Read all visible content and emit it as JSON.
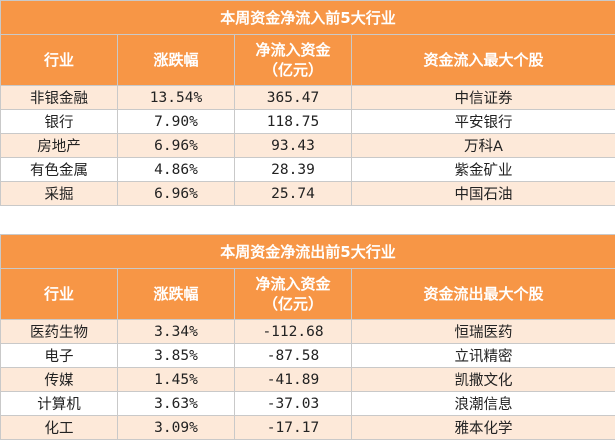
{
  "inflow": {
    "title": "本周资金净流入前5大行业",
    "headers": {
      "industry": "行业",
      "change": "涨跌幅",
      "net_line1": "净流入资金",
      "net_line2": "（亿元）",
      "top_stock": "资金流入最大个股"
    },
    "rows": [
      {
        "industry": "非银金融",
        "change": "13.54%",
        "net": "365.47",
        "stock": "中信证券"
      },
      {
        "industry": "银行",
        "change": "7.90%",
        "net": "118.75",
        "stock": "平安银行"
      },
      {
        "industry": "房地产",
        "change": "6.96%",
        "net": "93.43",
        "stock": "万科A"
      },
      {
        "industry": "有色金属",
        "change": "4.86%",
        "net": "28.39",
        "stock": "紫金矿业"
      },
      {
        "industry": "采掘",
        "change": "6.96%",
        "net": "25.74",
        "stock": "中国石油"
      }
    ]
  },
  "outflow": {
    "title": "本周资金净流出前5大行业",
    "headers": {
      "industry": "行业",
      "change": "涨跌幅",
      "net_line1": "净流入资金",
      "net_line2": "（亿元）",
      "top_stock": "资金流出最大个股"
    },
    "rows": [
      {
        "industry": "医药生物",
        "change": "3.34%",
        "net": "-112.68",
        "stock": "恒瑞医药"
      },
      {
        "industry": "电子",
        "change": "3.85%",
        "net": "-87.58",
        "stock": "立讯精密"
      },
      {
        "industry": "传媒",
        "change": "1.45%",
        "net": "-41.89",
        "stock": "凯撒文化"
      },
      {
        "industry": "计算机",
        "change": "3.63%",
        "net": "-37.03",
        "stock": "浪潮信息"
      },
      {
        "industry": "化工",
        "change": "3.09%",
        "net": "-17.17",
        "stock": "雅本化学"
      }
    ]
  },
  "colors": {
    "header_bg": "#f79646",
    "header_text": "#ffffff",
    "row_alt_bg": "#fde9d9",
    "row_plain_bg": "#ffffff"
  }
}
